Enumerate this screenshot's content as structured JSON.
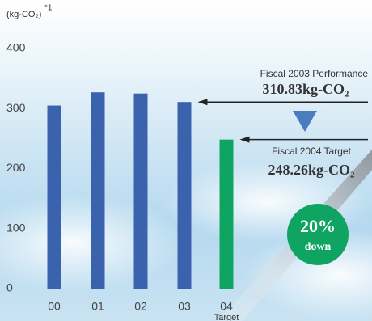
{
  "chart_data": {
    "type": "bar",
    "y_unit": "(kg-CO₂)",
    "y_unit_note": "*1",
    "categories": [
      "00",
      "01",
      "02",
      "03",
      "04"
    ],
    "category_note": "Target",
    "values": [
      305,
      327,
      325,
      310.83,
      248.26
    ],
    "colors": [
      "#3b63ad",
      "#3b63ad",
      "#3b63ad",
      "#3b63ad",
      "#10a463"
    ],
    "ylim": [
      0,
      400
    ],
    "yticks": [
      0,
      100,
      200,
      300,
      400
    ],
    "grid": false,
    "callouts": [
      {
        "caption": "Fiscal 2003 Performance",
        "value_label": "310.83kg-CO₂",
        "index": 3
      },
      {
        "caption": "Fiscal 2004 Target",
        "value_label": "248.26kg-CO₂",
        "index": 4
      }
    ],
    "badge": {
      "value_label": "20%",
      "text": "down"
    }
  }
}
